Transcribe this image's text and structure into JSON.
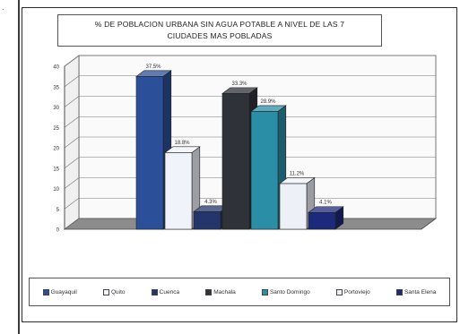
{
  "chart_data": {
    "type": "bar",
    "title": "% DE POBLACION URBANA SIN AGUA POTABLE A NIVEL DE LAS 7 CIUDADES MAS POBLADAS",
    "title_lines": [
      "% DE POBLACION URBANA SIN AGUA POTABLE A NIVEL DE LAS 7",
      "CIUDADES MAS POBLADAS"
    ],
    "xlabel": "",
    "ylabel": "",
    "ylim": [
      0,
      40
    ],
    "yticks": [
      "0",
      "5",
      "10",
      "15",
      "20",
      "25",
      "30",
      "35",
      "40"
    ],
    "grid": true,
    "legend_position": "bottom",
    "three_d": true,
    "series": [
      {
        "name": "Guayaquil",
        "values": [
          37.5
        ],
        "color": "#2c4f9a",
        "value_label": "37.5%"
      },
      {
        "name": "Quito",
        "values": [
          18.8
        ],
        "color": "#f1f3fa",
        "value_label": "18.8%"
      },
      {
        "name": "Cuenca",
        "values": [
          4.3
        ],
        "color": "#23356b",
        "value_label": "4.3%"
      },
      {
        "name": "Machala",
        "values": [
          33.3
        ],
        "color": "#2f3238",
        "value_label": "33.3%"
      },
      {
        "name": "Santo Domingo",
        "values": [
          28.9
        ],
        "color": "#2a8fa6",
        "value_label": "28.9%"
      },
      {
        "name": "Portoviejo",
        "values": [
          11.2
        ],
        "color": "#eef0f8",
        "value_label": "11.2%"
      },
      {
        "name": "Santa Elena",
        "values": [
          4.1
        ],
        "color": "#1b2a7a",
        "value_label": "4.1%"
      }
    ]
  },
  "legend": {
    "items": [
      "Guayaquil",
      "Quito",
      "Cuenca",
      "Machala",
      "Santo Domingo",
      "Portoviejo",
      "Santa Elena"
    ]
  }
}
